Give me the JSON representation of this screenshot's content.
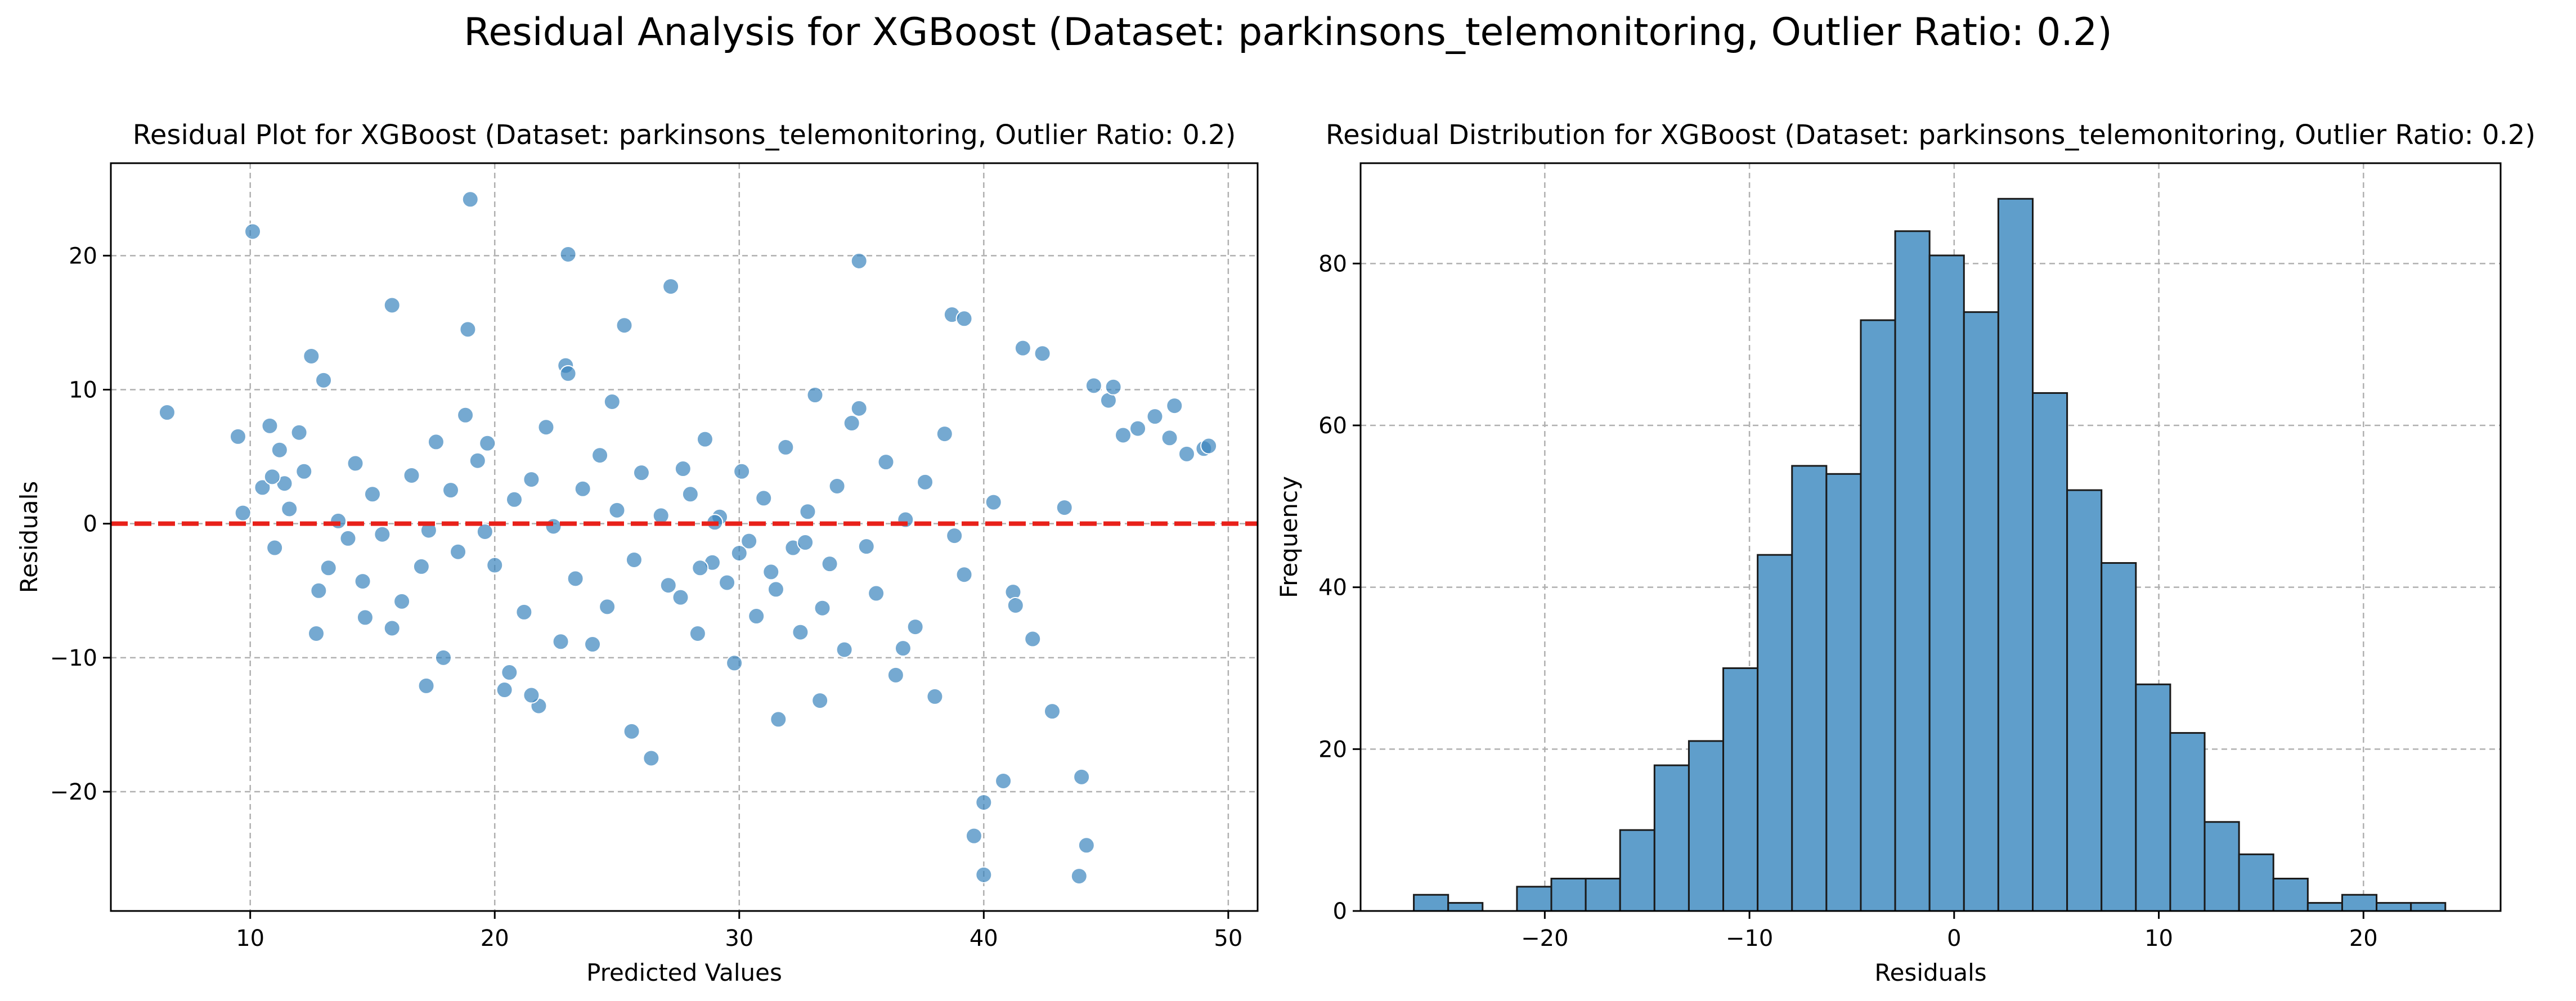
{
  "figure": {
    "suptitle": "Residual Analysis for XGBoost (Dataset: parkinsons_telemonitoring, Outlier Ratio: 0.2)"
  },
  "chart_data": [
    {
      "type": "scatter",
      "title": "Residual Plot for XGBoost (Dataset: parkinsons_telemonitoring, Outlier Ratio: 0.2)",
      "xlabel": "Predicted Values",
      "ylabel": "Residuals",
      "xlim": [
        4.3,
        51.2
      ],
      "ylim": [
        -28.9,
        26.9
      ],
      "xticks": [
        10,
        20,
        30,
        40,
        50
      ],
      "xtick_labels": [
        "10",
        "20",
        "30",
        "40",
        "50"
      ],
      "yticks": [
        -20,
        -10,
        0,
        10,
        20
      ],
      "ytick_labels": [
        "−20",
        "−10",
        "0",
        "10",
        "20"
      ],
      "grid": true,
      "reference_line": {
        "y": 0,
        "color": "#e8211a",
        "style": "dashed"
      },
      "point_color": "#3a84bd",
      "x": [
        6.6,
        9.5,
        9.7,
        10.1,
        10.5,
        10.8,
        11.0,
        11.2,
        11.4,
        11.6,
        12.0,
        12.2,
        12.5,
        12.8,
        13.0,
        13.2,
        13.6,
        14.0,
        14.3,
        14.7,
        15.0,
        15.4,
        15.8,
        16.2,
        16.6,
        17.0,
        17.3,
        17.6,
        17.9,
        18.2,
        18.5,
        18.8,
        19.0,
        19.3,
        19.6,
        20.0,
        20.4,
        20.8,
        21.2,
        21.5,
        21.8,
        22.1,
        22.4,
        22.7,
        23.0,
        23.3,
        23.6,
        24.0,
        24.3,
        24.6,
        25.0,
        25.3,
        25.7,
        26.0,
        26.4,
        26.8,
        27.2,
        27.6,
        28.0,
        28.3,
        28.6,
        28.9,
        29.2,
        29.5,
        29.8,
        30.1,
        30.4,
        30.7,
        31.0,
        31.3,
        31.6,
        31.9,
        32.2,
        32.5,
        32.8,
        33.1,
        33.4,
        33.7,
        34.0,
        34.3,
        34.6,
        34.9,
        35.2,
        35.6,
        36.0,
        36.4,
        36.8,
        37.2,
        37.6,
        38.0,
        38.4,
        38.8,
        39.2,
        39.6,
        40.0,
        40.4,
        40.8,
        41.2,
        41.6,
        42.0,
        42.4,
        42.8,
        43.3,
        44.0,
        44.5,
        45.1,
        45.7,
        46.3,
        47.0,
        47.6,
        48.3,
        49.0,
        10.9,
        22.9,
        34.9,
        38.7,
        27.1,
        18.9,
        15.8,
        43.9,
        40.0,
        39.2,
        33.3,
        25.6,
        23.0,
        21.5,
        30.0,
        29.0,
        31.5,
        32.7,
        28.4,
        27.7,
        41.3,
        36.7,
        24.8,
        20.6,
        19.7,
        17.2,
        14.6,
        12.7,
        44.2,
        45.3,
        47.8,
        49.2
      ],
      "y": [
        8.3,
        6.5,
        0.8,
        21.8,
        2.7,
        7.3,
        -1.8,
        5.5,
        3.0,
        1.1,
        6.8,
        3.9,
        12.5,
        -5.0,
        10.7,
        -3.3,
        0.2,
        -1.1,
        4.5,
        -7.0,
        2.2,
        -0.8,
        16.3,
        -5.8,
        3.6,
        -3.2,
        -0.5,
        6.1,
        -10.0,
        2.5,
        -2.1,
        8.1,
        24.2,
        4.7,
        -0.6,
        -3.1,
        -12.4,
        1.8,
        -6.6,
        3.3,
        -13.6,
        7.2,
        -0.2,
        -8.8,
        20.1,
        -4.1,
        2.6,
        -9.0,
        5.1,
        -6.2,
        1.0,
        14.8,
        -2.7,
        3.8,
        -17.5,
        0.6,
        17.7,
        -5.5,
        2.2,
        -8.2,
        6.3,
        -2.9,
        0.5,
        -4.4,
        -10.4,
        3.9,
        -1.3,
        -6.9,
        1.9,
        -3.6,
        -14.6,
        5.7,
        -1.8,
        -8.1,
        0.9,
        9.6,
        -6.3,
        -3.0,
        2.8,
        -9.4,
        7.5,
        19.6,
        -1.7,
        -5.2,
        4.6,
        -11.3,
        0.3,
        -7.7,
        3.1,
        -12.9,
        6.7,
        -0.9,
        -3.8,
        -23.3,
        -20.8,
        1.6,
        -19.2,
        -5.1,
        13.1,
        -8.6,
        12.7,
        -14.0,
        1.2,
        -18.9,
        10.3,
        9.2,
        6.6,
        7.1,
        8.0,
        6.4,
        5.2,
        5.6,
        3.5,
        11.8,
        8.6,
        15.6,
        -4.6,
        14.5,
        -7.8,
        -26.3,
        -26.2,
        15.3,
        -13.2,
        -15.5,
        11.2,
        -12.8,
        -2.2,
        0.1,
        -4.9,
        -1.4,
        -3.3,
        4.1,
        -6.1,
        -9.3,
        9.1,
        -11.1,
        6.0,
        -12.1,
        -4.3,
        -8.2,
        -24.0,
        10.2,
        8.8,
        5.8
      ]
    },
    {
      "type": "bar",
      "title": "Residual Distribution for XGBoost (Dataset: parkinsons_telemonitoring, Outlier Ratio: 0.2)",
      "xlabel": "Residuals",
      "ylabel": "Frequency",
      "xlim": [
        -29.0,
        26.7
      ],
      "ylim": [
        0,
        92.4
      ],
      "xticks": [
        -20,
        -10,
        0,
        10,
        20
      ],
      "xtick_labels": [
        "−20",
        "−10",
        "0",
        "10",
        "20"
      ],
      "yticks": [
        0,
        20,
        40,
        60,
        80
      ],
      "ytick_labels": [
        "0",
        "20",
        "40",
        "60",
        "80"
      ],
      "grid": true,
      "bar_color": "#5f9ecb",
      "bin_start": -26.4,
      "bin_width": 1.68,
      "values": [
        2,
        1,
        0,
        3,
        4,
        4,
        10,
        18,
        21,
        30,
        44,
        55,
        54,
        73,
        84,
        81,
        74,
        88,
        64,
        52,
        43,
        28,
        22,
        11,
        7,
        4,
        1,
        2,
        1,
        1
      ]
    }
  ]
}
